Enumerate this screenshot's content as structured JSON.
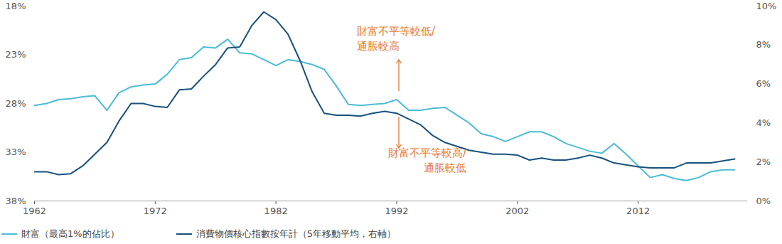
{
  "chart_data": {
    "type": "line",
    "x": [
      1962,
      1963,
      1964,
      1965,
      1966,
      1967,
      1968,
      1969,
      1970,
      1971,
      1972,
      1973,
      1974,
      1975,
      1976,
      1977,
      1978,
      1979,
      1980,
      1981,
      1982,
      1983,
      1984,
      1985,
      1986,
      1987,
      1988,
      1989,
      1990,
      1991,
      1992,
      1993,
      1994,
      1995,
      1996,
      1997,
      1998,
      1999,
      2000,
      2001,
      2002,
      2003,
      2004,
      2005,
      2006,
      2007,
      2008,
      2009,
      2010,
      2011,
      2012,
      2013,
      2014,
      2015,
      2016,
      2017,
      2018,
      2019,
      2020
    ],
    "xlim": [
      1962,
      2021
    ],
    "xticks": [
      1962,
      1972,
      1982,
      1992,
      2002,
      2012
    ],
    "ylim": [
      38,
      18
    ],
    "yticks": [
      {
        "value": 18,
        "label": "18%"
      },
      {
        "value": 23,
        "label": "23%"
      },
      {
        "value": 28,
        "label": "28%"
      },
      {
        "value": 33,
        "label": "33%"
      },
      {
        "value": 38,
        "label": "38%"
      }
    ],
    "y2lim": [
      0,
      10
    ],
    "y2ticks": [
      {
        "value": 0,
        "label": "0%"
      },
      {
        "value": 2,
        "label": "2%"
      },
      {
        "value": 4,
        "label": "4%"
      },
      {
        "value": 6,
        "label": "6%"
      },
      {
        "value": 8,
        "label": "8%"
      },
      {
        "value": 10,
        "label": "10%"
      }
    ],
    "grid": false,
    "legend": "bottom",
    "series": [
      {
        "name": "財富（最高1%的佔比）",
        "color": "#4bbcd6",
        "values": [
          28.2,
          28.0,
          27.6,
          27.5,
          27.3,
          27.2,
          28.7,
          26.9,
          26.3,
          26.1,
          26.0,
          25.0,
          23.5,
          23.3,
          22.2,
          22.3,
          21.4,
          22.8,
          22.9,
          23.5,
          24.1,
          23.5,
          23.7,
          24.0,
          24.5,
          26.2,
          28.1,
          28.2,
          28.1,
          28.0,
          27.6,
          28.7,
          28.7,
          28.5,
          28.4,
          29.2,
          30.0,
          31.1,
          31.4,
          31.9,
          31.4,
          30.9,
          30.9,
          31.4,
          32.1,
          32.5,
          32.9,
          33.1,
          32.1,
          33.2,
          34.4,
          35.6,
          35.3,
          35.7,
          35.9,
          35.6,
          35.0,
          34.8,
          34.8
        ]
      },
      {
        "name": "消費物價核心指數按年計（5年移動平均，右軸）",
        "color": "#17517e",
        "axis": "y2",
        "values": [
          1.5,
          1.5,
          1.35,
          1.4,
          1.8,
          2.4,
          3.0,
          4.1,
          5.0,
          5.0,
          4.85,
          4.8,
          5.7,
          5.75,
          6.4,
          7.0,
          7.85,
          7.9,
          9.0,
          9.7,
          9.3,
          8.55,
          7.2,
          5.6,
          4.5,
          4.4,
          4.4,
          4.35,
          4.5,
          4.6,
          4.5,
          4.2,
          3.9,
          3.35,
          3.0,
          2.8,
          2.6,
          2.5,
          2.4,
          2.4,
          2.35,
          2.1,
          2.2,
          2.1,
          2.1,
          2.2,
          2.35,
          2.2,
          1.95,
          1.85,
          1.75,
          1.7,
          1.7,
          1.7,
          1.95,
          1.95,
          1.95,
          2.05,
          2.15
        ]
      }
    ],
    "annotations": [
      "財富不平等較低/\n通脹較高",
      "財富不平等較高/\n通脹較低"
    ]
  }
}
